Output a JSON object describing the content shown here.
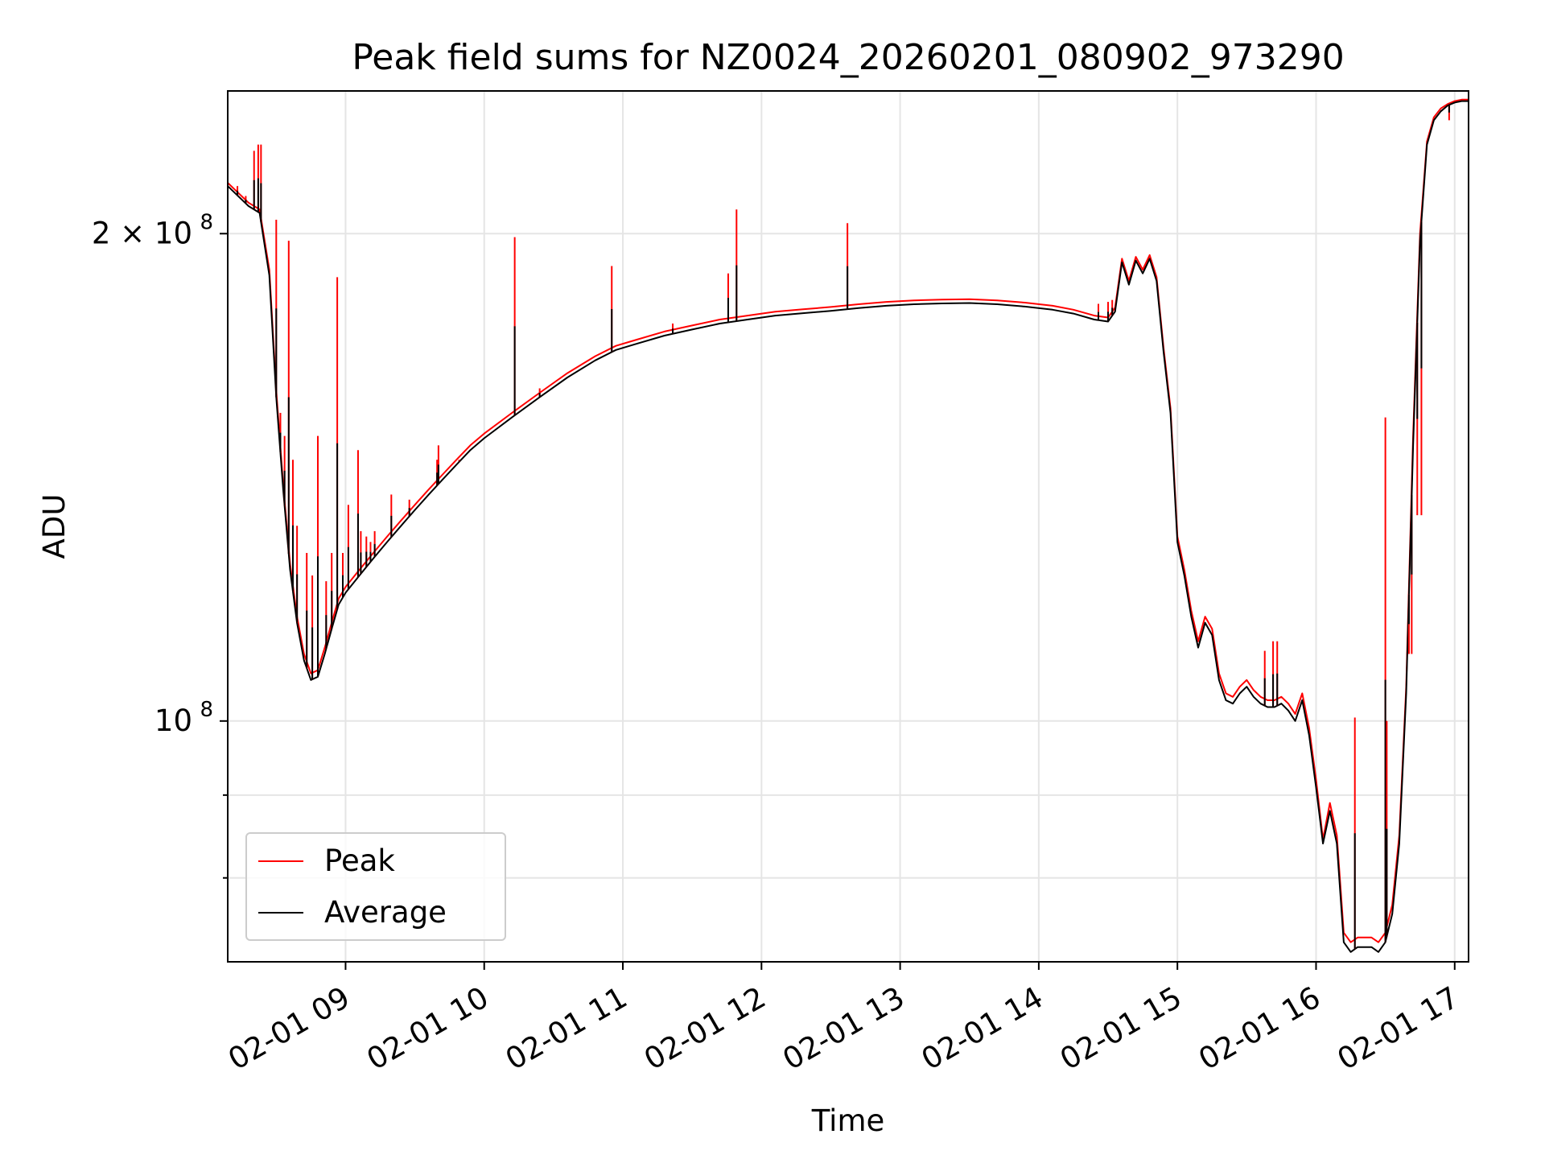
{
  "chart_data": {
    "type": "line",
    "title": "Peak field sums for NZ0024_20260201_080902_973290",
    "xlabel": "Time",
    "ylabel": "ADU",
    "xlim": [
      8.15,
      17.1
    ],
    "ylim": [
      71000000,
      245000000
    ],
    "yscale": "log",
    "grid": true,
    "legend_position": "lower-left",
    "xticks": [
      {
        "value": 9,
        "label": "02-01 09"
      },
      {
        "value": 10,
        "label": "02-01 10"
      },
      {
        "value": 11,
        "label": "02-01 11"
      },
      {
        "value": 12,
        "label": "02-01 12"
      },
      {
        "value": 13,
        "label": "02-01 13"
      },
      {
        "value": 14,
        "label": "02-01 14"
      },
      {
        "value": 15,
        "label": "02-01 15"
      },
      {
        "value": 16,
        "label": "02-01 16"
      },
      {
        "value": 17,
        "label": "02-01 17"
      }
    ],
    "yticks_major": [
      {
        "value": 100000000,
        "label": "10",
        "exp": "8"
      },
      {
        "value": 200000000,
        "label": "2 × 10",
        "exp": "8"
      }
    ],
    "yticks_minor": [
      80000000,
      90000000,
      300000000
    ],
    "series": [
      {
        "name": "Peak",
        "color": "#ff0000",
        "x": [
          8.15,
          8.3,
          8.38,
          8.45,
          8.5,
          8.55,
          8.6,
          8.65,
          8.7,
          8.75,
          8.8,
          8.85,
          8.9,
          8.95,
          9.0,
          9.1,
          9.2,
          9.3,
          9.4,
          9.5,
          9.6,
          9.7,
          9.8,
          9.9,
          10.0,
          10.2,
          10.4,
          10.6,
          10.8,
          10.95,
          11.1,
          11.3,
          11.5,
          11.7,
          11.9,
          12.1,
          12.3,
          12.5,
          12.7,
          12.9,
          13.1,
          13.3,
          13.5,
          13.7,
          13.9,
          14.1,
          14.25,
          14.4,
          14.5,
          14.55,
          14.6,
          14.65,
          14.7,
          14.75,
          14.8,
          14.85,
          14.9,
          14.95,
          15.0,
          15.05,
          15.1,
          15.15,
          15.2,
          15.25,
          15.3,
          15.35,
          15.4,
          15.45,
          15.5,
          15.55,
          15.6,
          15.65,
          15.7,
          15.75,
          15.8,
          15.85,
          15.9,
          15.95,
          16.0,
          16.05,
          16.1,
          16.15,
          16.2,
          16.25,
          16.3,
          16.35,
          16.4,
          16.45,
          16.5,
          16.55,
          16.6,
          16.65,
          16.7,
          16.75,
          16.8,
          16.85,
          16.9,
          16.95,
          17.0,
          17.05,
          17.1
        ],
        "values": [
          215000000,
          209000000,
          207000000,
          190000000,
          160000000,
          140000000,
          125000000,
          116000000,
          110000000,
          107000000,
          107500000,
          111000000,
          115000000,
          119000000,
          121000000,
          124000000,
          127000000,
          130000000,
          133000000,
          136000000,
          139000000,
          142000000,
          145000000,
          148000000,
          150500000,
          155000000,
          159500000,
          164000000,
          168000000,
          170500000,
          172000000,
          174000000,
          175500000,
          177000000,
          178000000,
          179000000,
          179600000,
          180200000,
          180900000,
          181500000,
          181900000,
          182100000,
          182200000,
          181900000,
          181300000,
          180500000,
          179500000,
          178000000,
          177500000,
          180000000,
          193000000,
          187000000,
          193500000,
          190000000,
          194000000,
          188000000,
          170000000,
          156000000,
          130000000,
          124000000,
          117000000,
          112000000,
          116000000,
          114000000,
          107000000,
          104000000,
          103500000,
          105000000,
          106000000,
          104500000,
          103500000,
          103000000,
          103000000,
          103500000,
          102500000,
          101000000,
          104000000,
          99000000,
          92000000,
          84500000,
          89000000,
          85000000,
          74000000,
          73000000,
          73500000,
          73500000,
          73500000,
          73000000,
          74000000,
          77000000,
          85000000,
          105000000,
          150000000,
          200000000,
          228000000,
          236000000,
          239000000,
          240500000,
          241500000,
          242000000,
          242000000
        ],
        "spikes": [
          {
            "x": 8.22,
            "value": 214000000
          },
          {
            "x": 8.28,
            "value": 211000000
          },
          {
            "x": 8.34,
            "value": 225000000
          },
          {
            "x": 8.37,
            "value": 227000000
          },
          {
            "x": 8.39,
            "value": 227000000
          },
          {
            "x": 8.5,
            "value": 204000000
          },
          {
            "x": 8.53,
            "value": 155000000
          },
          {
            "x": 8.56,
            "value": 150000000
          },
          {
            "x": 8.59,
            "value": 198000000
          },
          {
            "x": 8.62,
            "value": 145000000
          },
          {
            "x": 8.65,
            "value": 132000000
          },
          {
            "x": 8.72,
            "value": 127000000
          },
          {
            "x": 8.76,
            "value": 123000000
          },
          {
            "x": 8.8,
            "value": 150000000
          },
          {
            "x": 8.86,
            "value": 122000000
          },
          {
            "x": 8.9,
            "value": 127000000
          },
          {
            "x": 8.94,
            "value": 188000000
          },
          {
            "x": 8.98,
            "value": 127000000
          },
          {
            "x": 9.02,
            "value": 136000000
          },
          {
            "x": 9.09,
            "value": 147000000
          },
          {
            "x": 9.11,
            "value": 131000000
          },
          {
            "x": 9.15,
            "value": 130000000
          },
          {
            "x": 9.18,
            "value": 129000000
          },
          {
            "x": 9.21,
            "value": 131000000
          },
          {
            "x": 9.33,
            "value": 138000000
          },
          {
            "x": 9.46,
            "value": 137000000
          },
          {
            "x": 9.66,
            "value": 145000000
          },
          {
            "x": 9.67,
            "value": 148000000
          },
          {
            "x": 9.82,
            "value": 145000000
          },
          {
            "x": 10.22,
            "value": 199000000
          },
          {
            "x": 10.4,
            "value": 160500000
          },
          {
            "x": 10.92,
            "value": 191000000
          },
          {
            "x": 11.36,
            "value": 176000000
          },
          {
            "x": 11.76,
            "value": 189000000
          },
          {
            "x": 11.82,
            "value": 207000000
          },
          {
            "x": 12.62,
            "value": 203000000
          },
          {
            "x": 14.43,
            "value": 181000000
          },
          {
            "x": 14.5,
            "value": 181500000
          },
          {
            "x": 14.53,
            "value": 182000000
          },
          {
            "x": 15.63,
            "value": 110500000
          },
          {
            "x": 15.69,
            "value": 112000000
          },
          {
            "x": 15.72,
            "value": 112000000
          },
          {
            "x": 16.28,
            "value": 100500000
          },
          {
            "x": 16.5,
            "value": 154000000
          },
          {
            "x": 16.51,
            "value": 100000000
          },
          {
            "x": 16.67,
            "value": 110000000
          },
          {
            "x": 16.69,
            "value": 110000000
          },
          {
            "x": 16.73,
            "value": 134000000
          },
          {
            "x": 16.76,
            "value": 134000000
          },
          {
            "x": 16.96,
            "value": 235000000
          }
        ]
      },
      {
        "name": "Average",
        "color": "#000000",
        "x": [
          8.15,
          8.3,
          8.38,
          8.45,
          8.5,
          8.55,
          8.6,
          8.65,
          8.7,
          8.75,
          8.8,
          8.85,
          8.9,
          8.95,
          9.0,
          9.1,
          9.2,
          9.3,
          9.4,
          9.5,
          9.6,
          9.7,
          9.8,
          9.9,
          10.0,
          10.2,
          10.4,
          10.6,
          10.8,
          10.95,
          11.1,
          11.3,
          11.5,
          11.7,
          11.9,
          12.1,
          12.3,
          12.5,
          12.7,
          12.9,
          13.1,
          13.3,
          13.5,
          13.7,
          13.9,
          14.1,
          14.25,
          14.4,
          14.5,
          14.55,
          14.6,
          14.65,
          14.7,
          14.75,
          14.8,
          14.85,
          14.9,
          14.95,
          15.0,
          15.05,
          15.1,
          15.15,
          15.2,
          15.25,
          15.3,
          15.35,
          15.4,
          15.45,
          15.5,
          15.55,
          15.6,
          15.65,
          15.7,
          15.75,
          15.8,
          15.85,
          15.9,
          15.95,
          16.0,
          16.05,
          16.1,
          16.15,
          16.2,
          16.25,
          16.3,
          16.35,
          16.4,
          16.45,
          16.5,
          16.55,
          16.6,
          16.65,
          16.7,
          16.75,
          16.8,
          16.85,
          16.9,
          16.95,
          17.0,
          17.05,
          17.1
        ],
        "values": [
          214000000,
          208000000,
          206000000,
          188500000,
          158500000,
          139000000,
          124000000,
          115000000,
          109000000,
          106000000,
          106500000,
          110000000,
          114000000,
          118000000,
          120000000,
          123000000,
          126000000,
          129000000,
          132000000,
          135000000,
          138000000,
          141000000,
          144000000,
          147000000,
          149500000,
          154000000,
          158500000,
          163000000,
          167000000,
          169500000,
          171000000,
          173000000,
          174500000,
          176000000,
          177000000,
          178000000,
          178600000,
          179200000,
          179900000,
          180500000,
          180900000,
          181100000,
          181200000,
          180900000,
          180300000,
          179500000,
          178500000,
          177000000,
          176500000,
          179000000,
          192000000,
          186000000,
          192500000,
          189000000,
          193000000,
          187000000,
          169000000,
          155000000,
          129000000,
          123000000,
          116000000,
          111000000,
          115000000,
          113000000,
          106000000,
          103000000,
          102500000,
          104000000,
          105000000,
          103500000,
          102500000,
          102000000,
          102000000,
          102500000,
          101500000,
          100000000,
          103000000,
          98000000,
          91000000,
          84000000,
          88000000,
          84000000,
          73000000,
          72000000,
          72500000,
          72500000,
          72500000,
          72000000,
          73000000,
          76000000,
          84000000,
          104000000,
          148000000,
          198000000,
          227000000,
          235000000,
          238000000,
          240000000,
          241000000,
          241500000,
          241500000
        ]
      }
    ]
  },
  "legend": {
    "items": [
      {
        "label": "Peak",
        "color": "#ff0000"
      },
      {
        "label": "Average",
        "color": "#000000"
      }
    ]
  }
}
